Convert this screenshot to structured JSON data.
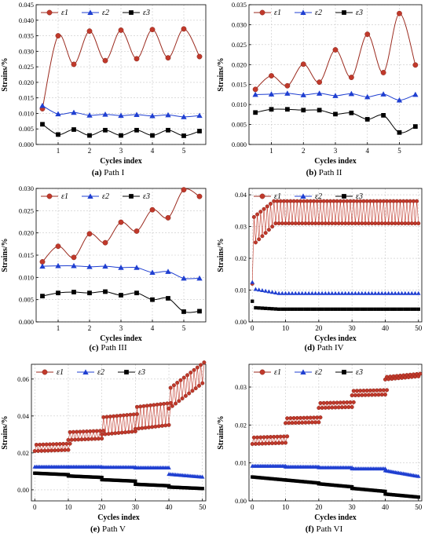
{
  "figure": {
    "panels": [
      {
        "label": "(a)",
        "title": "Path I"
      },
      {
        "label": "(b)",
        "title": "Path II"
      },
      {
        "label": "(c)",
        "title": "Path III"
      },
      {
        "label": "(d)",
        "title": "Path IV"
      },
      {
        "label": "(e)",
        "title": "Path V"
      },
      {
        "label": "(f)",
        "title": "Path VI"
      }
    ]
  },
  "chart_data": [
    {
      "type": "line",
      "xlabel": "Cycles index",
      "ylabel": "Strains/%",
      "xlim": [
        0.3,
        5.7
      ],
      "ylim": [
        0,
        0.045
      ],
      "xticks": [
        1,
        2,
        3,
        4,
        5
      ],
      "yticks": [
        0,
        0.005,
        0.01,
        0.015,
        0.02,
        0.025,
        0.03,
        0.035,
        0.04,
        0.045
      ],
      "ytick_labels": [
        "0.000",
        "0.005",
        "0.010",
        "0.015",
        "0.020",
        "0.025",
        "0.030",
        "0.035",
        "0.040",
        "0.045"
      ],
      "grid": true,
      "legend": "top-left",
      "x": [
        0.5,
        1,
        1.5,
        2,
        2.5,
        3,
        3.5,
        4,
        4.5,
        5,
        5.5
      ],
      "series": [
        {
          "name": "ε1",
          "color": "#c0392b",
          "marker": "circle",
          "values": [
            0.0115,
            0.035,
            0.0258,
            0.0365,
            0.027,
            0.0368,
            0.0276,
            0.037,
            0.0279,
            0.0372,
            0.0283
          ]
        },
        {
          "name": "ε2",
          "color": "#1f3fd1",
          "marker": "triangle",
          "values": [
            0.0125,
            0.0098,
            0.0103,
            0.0094,
            0.0097,
            0.0093,
            0.0096,
            0.0092,
            0.0095,
            0.0089,
            0.0093
          ]
        },
        {
          "name": "ε3",
          "color": "#000000",
          "marker": "square",
          "values": [
            0.0065,
            0.0032,
            0.0048,
            0.0029,
            0.0046,
            0.0029,
            0.0046,
            0.0029,
            0.0046,
            0.0028,
            0.0043
          ]
        }
      ]
    },
    {
      "type": "line",
      "xlabel": "Cycles index",
      "ylabel": "Strains/%",
      "xlim": [
        0.3,
        5.7
      ],
      "ylim": [
        0,
        0.035
      ],
      "xticks": [
        1,
        2,
        3,
        4,
        5
      ],
      "yticks": [
        0,
        0.005,
        0.01,
        0.015,
        0.02,
        0.025,
        0.03,
        0.035
      ],
      "ytick_labels": [
        "0.000",
        "0.005",
        "0.010",
        "0.015",
        "0.020",
        "0.025",
        "0.030",
        "0.035"
      ],
      "grid": true,
      "legend": "top-left",
      "x": [
        0.5,
        1,
        1.5,
        2,
        2.5,
        3,
        3.5,
        4,
        4.5,
        5,
        5.5
      ],
      "series": [
        {
          "name": "ε1",
          "color": "#c0392b",
          "marker": "circle",
          "values": [
            0.0138,
            0.0172,
            0.0147,
            0.0201,
            0.0156,
            0.0237,
            0.0168,
            0.0276,
            0.018,
            0.0328,
            0.0199
          ]
        },
        {
          "name": "ε2",
          "color": "#1f3fd1",
          "marker": "triangle",
          "values": [
            0.0125,
            0.0126,
            0.0128,
            0.0124,
            0.0128,
            0.0122,
            0.0127,
            0.0119,
            0.0126,
            0.0111,
            0.0125
          ]
        },
        {
          "name": "ε3",
          "color": "#000000",
          "marker": "square",
          "values": [
            0.008,
            0.0088,
            0.0088,
            0.0086,
            0.0086,
            0.0076,
            0.0079,
            0.0063,
            0.0073,
            0.003,
            0.0045
          ]
        }
      ]
    },
    {
      "type": "line",
      "xlabel": "Cycles index",
      "ylabel": "Strains/%",
      "xlim": [
        0.3,
        5.7
      ],
      "ylim": [
        0,
        0.03
      ],
      "xticks": [
        1,
        2,
        3,
        4,
        5
      ],
      "yticks": [
        0,
        0.005,
        0.01,
        0.015,
        0.02,
        0.025,
        0.03
      ],
      "ytick_labels": [
        "0.000",
        "0.005",
        "0.010",
        "0.015",
        "0.020",
        "0.025",
        "0.030"
      ],
      "grid": true,
      "legend": "top-left",
      "x": [
        0.5,
        1,
        1.5,
        2,
        2.5,
        3,
        3.5,
        4,
        4.5,
        5,
        5.5
      ],
      "series": [
        {
          "name": "ε1",
          "color": "#c0392b",
          "marker": "circle",
          "values": [
            0.0135,
            0.017,
            0.0145,
            0.0198,
            0.0178,
            0.0224,
            0.0204,
            0.0252,
            0.0234,
            0.0297,
            0.0282
          ]
        },
        {
          "name": "ε2",
          "color": "#1f3fd1",
          "marker": "triangle",
          "values": [
            0.0125,
            0.0126,
            0.0126,
            0.0124,
            0.0125,
            0.0122,
            0.0122,
            0.0111,
            0.0113,
            0.0098,
            0.0098
          ]
        },
        {
          "name": "ε3",
          "color": "#000000",
          "marker": "square",
          "values": [
            0.0058,
            0.0065,
            0.0067,
            0.0065,
            0.0068,
            0.006,
            0.0065,
            0.005,
            0.0053,
            0.0023,
            0.0024
          ]
        }
      ]
    },
    {
      "type": "line",
      "xlabel": "Cycles index",
      "ylabel": "Strains/%",
      "xlim": [
        -1,
        51
      ],
      "ylim": [
        0,
        0.042
      ],
      "xticks": [
        0,
        10,
        20,
        30,
        40,
        50
      ],
      "yticks": [
        0,
        0.01,
        0.02,
        0.03,
        0.04
      ],
      "ytick_labels": [
        "0.00",
        "0.01",
        "0.02",
        "0.03",
        "0.04"
      ],
      "grid": true,
      "legend": "top",
      "oscillating": true,
      "series": [
        {
          "name": "ε1",
          "color": "#c0392b",
          "marker": "circle",
          "upper_start": 0.033,
          "upper_end": 0.038,
          "lower_start": 0.025,
          "lower_end": 0.031,
          "initial": 0.012
        },
        {
          "name": "ε2",
          "color": "#1f3fd1",
          "marker": "triangle",
          "level_start": 0.0105,
          "level_end": 0.009,
          "initial": 0.0125
        },
        {
          "name": "ε3",
          "color": "#000000",
          "marker": "square",
          "level_start": 0.0045,
          "level_end": 0.004,
          "initial": 0.0065
        }
      ]
    },
    {
      "type": "line",
      "xlabel": "Cycles index",
      "ylabel": "Strains/%",
      "xlim": [
        -1,
        51
      ],
      "ylim": [
        -0.006,
        0.068
      ],
      "xticks": [
        0,
        10,
        20,
        30,
        40,
        50
      ],
      "yticks": [
        0,
        0.02,
        0.04,
        0.06
      ],
      "ytick_labels": [
        "0.00",
        "0.02",
        "0.04",
        "0.06"
      ],
      "grid": true,
      "legend": "top",
      "oscillating": true,
      "stages": [
        {
          "x0": 0,
          "x1": 10,
          "e1_low": 0.021,
          "e1_high": 0.025,
          "e2": 0.0125,
          "e3": 0.009
        },
        {
          "x0": 10,
          "x1": 20,
          "e1_low": 0.027,
          "e1_high": 0.032,
          "e2": 0.0125,
          "e3": 0.0075
        },
        {
          "x0": 20,
          "x1": 30,
          "e1_low": 0.03,
          "e1_high": 0.041,
          "e2": 0.0123,
          "e3": 0.0055
        },
        {
          "x0": 30,
          "x1": 40,
          "e1_low": 0.033,
          "e1_high": 0.047,
          "e2": 0.012,
          "e3": 0.003
        },
        {
          "x0": 40,
          "x1": 50,
          "e1_low": 0.044,
          "e1_high": 0.069,
          "e2": 0.0085,
          "e3": 0.0015
        }
      ],
      "series": [
        {
          "name": "ε1",
          "color": "#c0392b",
          "marker": "circle"
        },
        {
          "name": "ε2",
          "color": "#1f3fd1",
          "marker": "triangle"
        },
        {
          "name": "ε3",
          "color": "#000000",
          "marker": "square"
        }
      ]
    },
    {
      "type": "line",
      "xlabel": "Cycles index",
      "ylabel": "Strains/%",
      "xlim": [
        -1,
        51
      ],
      "ylim": [
        0,
        0.036
      ],
      "xticks": [
        0,
        10,
        20,
        30,
        40,
        50
      ],
      "yticks": [
        0,
        0.01,
        0.02,
        0.03
      ],
      "ytick_labels": [
        "0.00",
        "0.01",
        "0.02",
        "0.03"
      ],
      "grid": true,
      "legend": "top",
      "oscillating": true,
      "stages": [
        {
          "x0": 0,
          "x1": 10,
          "e1_low": 0.015,
          "e1_high": 0.017,
          "e2": 0.0092,
          "e3": 0.0063
        },
        {
          "x0": 10,
          "x1": 20,
          "e1_low": 0.0205,
          "e1_high": 0.022,
          "e2": 0.009,
          "e3": 0.0055
        },
        {
          "x0": 20,
          "x1": 30,
          "e1_low": 0.0245,
          "e1_high": 0.026,
          "e2": 0.0088,
          "e3": 0.0045
        },
        {
          "x0": 30,
          "x1": 40,
          "e1_low": 0.0278,
          "e1_high": 0.0292,
          "e2": 0.0085,
          "e3": 0.0033
        },
        {
          "x0": 40,
          "x1": 50,
          "e1_low": 0.032,
          "e1_high": 0.0335,
          "e2": 0.008,
          "e3": 0.0018
        }
      ],
      "series": [
        {
          "name": "ε1",
          "color": "#c0392b",
          "marker": "circle"
        },
        {
          "name": "ε2",
          "color": "#1f3fd1",
          "marker": "triangle"
        },
        {
          "name": "ε3",
          "color": "#000000",
          "marker": "square"
        }
      ]
    }
  ]
}
